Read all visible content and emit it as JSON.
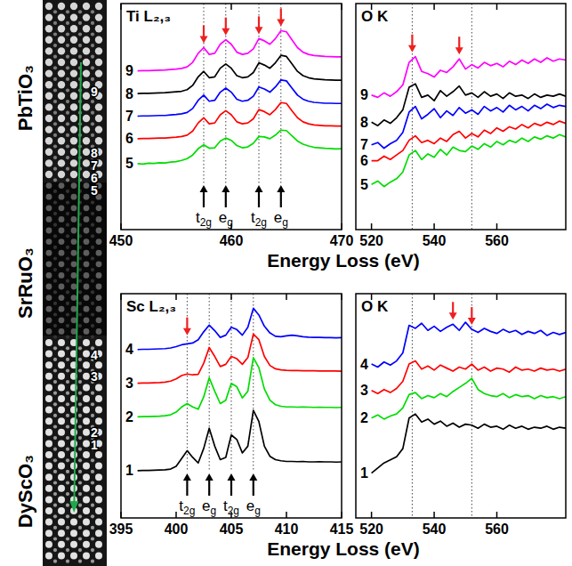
{
  "image": {
    "layers": [
      "PbTiO₃",
      "SrRuO₃",
      "DyScO₃"
    ],
    "points": [
      "9",
      "8",
      "7",
      "6",
      "5",
      "4",
      "3",
      "2",
      "1"
    ]
  },
  "chart_data": [
    {
      "type": "line",
      "title": "Ti L₂,₃",
      "x_label": "Energy Loss (eV)",
      "x": [
        451.5,
        452,
        452.5,
        453,
        453.5,
        454,
        454.5,
        455,
        455.5,
        456,
        456.5,
        457,
        457.5,
        458,
        458.5,
        459,
        459.5,
        460,
        460.5,
        461,
        461.5,
        462,
        462.5,
        463,
        463.5,
        464,
        464.5,
        465,
        465.5,
        466,
        466.5,
        467,
        467.5,
        468,
        468.5,
        469,
        469.5,
        470
      ],
      "series": [
        {
          "name": "9",
          "color": "#ff00ff",
          "values": [
            7.02,
            7.03,
            7.03,
            7.04,
            7.05,
            7.06,
            7.08,
            7.1,
            7.13,
            7.2,
            7.4,
            7.8,
            8.05,
            7.75,
            7.8,
            8.2,
            8.4,
            8.2,
            7.85,
            7.75,
            7.8,
            8.0,
            8.45,
            8.35,
            8.2,
            8.45,
            8.8,
            8.75,
            8.4,
            8.05,
            7.85,
            7.75,
            7.7,
            7.68,
            7.66,
            7.65,
            7.64,
            7.64
          ]
        },
        {
          "name": "8",
          "color": "#000000",
          "values": [
            6.02,
            6.03,
            6.03,
            6.04,
            6.05,
            6.06,
            6.08,
            6.1,
            6.12,
            6.19,
            6.38,
            6.76,
            7.0,
            6.72,
            6.76,
            7.14,
            7.33,
            7.14,
            6.81,
            6.72,
            6.76,
            6.95,
            7.38,
            7.28,
            7.14,
            7.38,
            7.71,
            7.66,
            7.33,
            7.0,
            6.81,
            6.72,
            6.67,
            6.65,
            6.63,
            6.62,
            6.61,
            6.61
          ]
        },
        {
          "name": "7",
          "color": "#0000ff",
          "values": [
            5.02,
            5.03,
            5.03,
            5.04,
            5.05,
            5.05,
            5.07,
            5.09,
            5.12,
            5.18,
            5.36,
            5.72,
            5.95,
            5.68,
            5.72,
            6.08,
            6.26,
            6.08,
            5.77,
            5.68,
            5.72,
            5.9,
            6.31,
            6.22,
            6.08,
            6.31,
            6.62,
            6.58,
            6.26,
            5.95,
            5.77,
            5.68,
            5.63,
            5.61,
            5.59,
            5.59,
            5.58,
            5.58
          ]
        },
        {
          "name": "6",
          "color": "#ff0000",
          "values": [
            4.02,
            4.03,
            4.03,
            4.04,
            4.05,
            4.05,
            4.07,
            4.09,
            4.12,
            4.18,
            4.36,
            4.72,
            4.95,
            4.68,
            4.72,
            5.08,
            5.26,
            5.08,
            4.77,
            4.68,
            4.72,
            4.9,
            5.31,
            5.22,
            5.08,
            5.31,
            5.62,
            5.58,
            5.26,
            4.95,
            4.77,
            4.68,
            4.63,
            4.61,
            4.59,
            4.59,
            4.58,
            4.58
          ]
        },
        {
          "name": "5",
          "color": "#00dd00",
          "values": [
            2.92,
            2.9,
            2.94,
            2.93,
            2.96,
            2.95,
            2.99,
            3.01,
            3.06,
            3.14,
            3.3,
            3.58,
            3.75,
            3.6,
            3.62,
            3.92,
            4.05,
            3.95,
            3.72,
            3.62,
            3.66,
            3.82,
            4.12,
            4.1,
            4.02,
            4.18,
            4.4,
            4.38,
            4.15,
            3.92,
            3.78,
            3.7,
            3.64,
            3.62,
            3.6,
            3.59,
            3.57,
            3.58
          ]
        }
      ],
      "xlim": [
        450,
        470
      ],
      "xticks": [
        450,
        460,
        470
      ],
      "ylim": [
        0,
        10
      ],
      "tick_labels": "x",
      "reference_lines": [
        457.5,
        459.5,
        462.5,
        464.5
      ],
      "red_arrows": [
        457.5,
        459.5,
        462.5,
        464.5
      ],
      "peak_labels": {
        "x": [
          457.5,
          459.5,
          462.5,
          464.5
        ],
        "labels": [
          "t2g",
          "eg",
          "t2g",
          "eg"
        ]
      }
    },
    {
      "type": "line",
      "title": "O K",
      "x": [
        520,
        522,
        524,
        526,
        528,
        530,
        532,
        534,
        536,
        538,
        540,
        542,
        544,
        546,
        548,
        550,
        552,
        554,
        556,
        558,
        560,
        562,
        564,
        566,
        568,
        570,
        572,
        574,
        576,
        578,
        580,
        582
      ],
      "series": [
        {
          "name": "9",
          "color": "#ff00ff",
          "values": [
            5.95,
            5.85,
            6.05,
            5.9,
            6.1,
            6.4,
            7.4,
            7.65,
            7.0,
            6.9,
            6.75,
            7.05,
            6.95,
            7.2,
            7.55,
            7.1,
            7.3,
            7.15,
            7.4,
            7.25,
            7.35,
            7.2,
            7.45,
            7.3,
            7.5,
            7.35,
            7.55,
            7.4,
            7.6,
            7.45,
            7.55,
            7.5
          ]
        },
        {
          "name": "8",
          "color": "#000000",
          "values": [
            4.75,
            4.6,
            4.85,
            4.7,
            4.95,
            5.3,
            6.3,
            6.45,
            5.85,
            5.95,
            5.7,
            6.15,
            5.9,
            6.1,
            6.35,
            5.95,
            6.05,
            5.85,
            6.1,
            5.9,
            6.0,
            5.8,
            6.05,
            5.9,
            5.95,
            5.8,
            6.0,
            5.85,
            5.95,
            5.9,
            6.0,
            5.9
          ]
        },
        {
          "name": "7",
          "color": "#0000ff",
          "values": [
            3.75,
            3.85,
            3.6,
            3.8,
            3.95,
            4.3,
            5.2,
            5.45,
            4.9,
            5.1,
            5.35,
            4.95,
            5.25,
            5.05,
            5.4,
            5.15,
            5.3,
            5.1,
            5.45,
            5.25,
            5.4,
            5.2,
            5.5,
            5.3,
            5.45,
            5.25,
            5.5,
            5.35,
            5.55,
            5.4,
            5.5,
            5.45
          ]
        },
        {
          "name": "6",
          "color": "#ff0000",
          "values": [
            3.05,
            3.05,
            3.25,
            3.1,
            3.3,
            3.5,
            3.95,
            4.15,
            3.85,
            3.95,
            3.8,
            4.05,
            3.9,
            4.2,
            4.35,
            4.05,
            4.25,
            4.1,
            4.4,
            4.25,
            4.5,
            4.35,
            4.55,
            4.45,
            4.65,
            4.5,
            4.7,
            4.6,
            4.75,
            4.65,
            4.8,
            4.7
          ]
        },
        {
          "name": "5",
          "color": "#00dd00",
          "values": [
            2.0,
            2.15,
            1.9,
            2.1,
            2.25,
            2.55,
            3.3,
            3.5,
            3.1,
            3.35,
            3.2,
            3.55,
            3.3,
            3.65,
            3.5,
            3.45,
            3.7,
            3.55,
            3.8,
            3.65,
            3.9,
            3.75,
            3.95,
            3.85,
            4.05,
            3.9,
            4.1,
            4.0,
            4.15,
            4.05,
            4.2,
            4.1
          ]
        }
      ],
      "xlim": [
        515,
        582
      ],
      "xticks": [
        520,
        540,
        560
      ],
      "ylim": [
        0,
        10
      ],
      "tick_labels": "x",
      "reference_lines": [
        533,
        552
      ],
      "red_arrows": [
        533,
        548
      ]
    },
    {
      "type": "line",
      "title": "Sc L₂,₃",
      "x_label": "Energy Loss (eV)",
      "x": [
        396.5,
        397,
        397.5,
        398,
        398.5,
        399,
        399.5,
        400,
        400.5,
        401,
        401.5,
        402,
        402.5,
        403,
        403.5,
        404,
        404.5,
        405,
        405.5,
        406,
        406.5,
        407,
        407.5,
        408,
        408.5,
        409,
        409.5,
        410,
        410.5,
        411,
        411.5,
        412,
        412.5,
        413,
        413.5,
        414,
        414.5,
        415
      ],
      "series": [
        {
          "name": "4",
          "color": "#0000ff",
          "values": [
            7.51,
            7.52,
            7.52,
            7.53,
            7.54,
            7.55,
            7.58,
            7.64,
            7.72,
            7.76,
            7.8,
            7.95,
            8.3,
            8.6,
            8.35,
            8.05,
            8.15,
            8.5,
            8.4,
            8.15,
            8.5,
            9.35,
            9.05,
            8.55,
            8.25,
            8.1,
            8.08,
            8.12,
            8.15,
            8.12,
            8.08,
            8.06,
            8.05,
            8.05,
            8.04,
            8.04,
            8.03,
            8.04
          ]
        },
        {
          "name": "3",
          "color": "#ff0000",
          "values": [
            6.01,
            6.02,
            6.02,
            6.03,
            6.04,
            6.06,
            6.1,
            6.2,
            6.35,
            6.42,
            6.38,
            6.4,
            6.9,
            7.6,
            7.2,
            6.75,
            6.85,
            7.2,
            7.1,
            6.85,
            7.15,
            8.2,
            7.95,
            7.2,
            6.8,
            6.65,
            6.6,
            6.58,
            6.57,
            6.57,
            6.56,
            6.56,
            6.56,
            6.55,
            6.55,
            6.55,
            6.55,
            6.54
          ]
        },
        {
          "name": "2",
          "color": "#00dd00",
          "values": [
            4.51,
            4.52,
            4.52,
            4.53,
            4.54,
            4.56,
            4.6,
            4.72,
            4.95,
            5.1,
            4.95,
            4.85,
            5.4,
            6.25,
            5.65,
            5.1,
            5.25,
            6.0,
            5.85,
            5.35,
            5.65,
            7.15,
            6.7,
            5.75,
            5.25,
            5.05,
            4.98,
            4.95,
            4.95,
            4.94,
            4.95,
            4.94,
            4.93,
            4.94,
            4.93,
            4.93,
            4.92,
            4.93
          ]
        },
        {
          "name": "1",
          "color": "#000000",
          "values": [
            2.11,
            2.12,
            2.12,
            2.13,
            2.14,
            2.15,
            2.18,
            2.3,
            2.65,
            3.0,
            2.7,
            2.45,
            3.1,
            4.0,
            3.2,
            2.6,
            2.7,
            3.7,
            3.5,
            2.9,
            3.2,
            4.8,
            4.3,
            3.2,
            2.75,
            2.6,
            2.55,
            2.52,
            2.52,
            2.51,
            2.52,
            2.5,
            2.5,
            2.51,
            2.5,
            2.5,
            2.49,
            2.5
          ]
        }
      ],
      "xlim": [
        395,
        415
      ],
      "xticks": [
        395,
        400,
        405,
        410,
        415
      ],
      "ylim": [
        0,
        10
      ],
      "tick_labels": "x",
      "reference_lines": [
        401,
        403,
        405,
        407
      ],
      "red_arrows": [
        401
      ],
      "peak_labels": {
        "x": [
          401,
          403,
          405,
          407
        ],
        "labels": [
          "t2g",
          "eg",
          "t2g",
          "eg"
        ]
      }
    },
    {
      "type": "line",
      "title": "O K",
      "x": [
        520,
        522,
        524,
        526,
        528,
        530,
        532,
        534,
        536,
        538,
        540,
        542,
        544,
        546,
        548,
        550,
        552,
        554,
        556,
        558,
        560,
        562,
        564,
        566,
        568,
        570,
        572,
        574,
        576,
        578,
        580,
        582
      ],
      "series": [
        {
          "name": "4",
          "color": "#0000ff",
          "values": [
            7.55,
            7.4,
            7.65,
            7.5,
            7.7,
            8.1,
            9.45,
            9.3,
            9.55,
            9.2,
            9.4,
            9.15,
            9.35,
            9.5,
            9.2,
            9.6,
            9.25,
            9.1,
            9.3,
            9.15,
            9.05,
            9.25,
            9.1,
            9.2,
            9.0,
            9.15,
            9.05,
            9.2,
            8.95,
            9.1,
            9.0,
            9.1
          ]
        },
        {
          "name": "3",
          "color": "#ff0000",
          "values": [
            6.25,
            6.1,
            6.3,
            6.15,
            6.35,
            6.7,
            7.55,
            7.7,
            7.3,
            7.45,
            7.25,
            7.5,
            7.35,
            7.2,
            7.4,
            7.3,
            7.55,
            7.25,
            7.4,
            7.2,
            7.35,
            7.3,
            7.15,
            7.4,
            7.25,
            7.3,
            7.2,
            7.35,
            7.25,
            7.3,
            7.2,
            7.3
          ]
        },
        {
          "name": "2",
          "color": "#00dd00",
          "values": [
            4.9,
            5.05,
            4.85,
            5.0,
            5.1,
            5.4,
            6.05,
            6.15,
            5.85,
            6.0,
            5.9,
            6.1,
            5.95,
            6.2,
            6.4,
            6.6,
            6.85,
            6.3,
            6.1,
            6.0,
            5.95,
            6.1,
            5.9,
            6.05,
            5.95,
            6.0,
            5.85,
            6.0,
            5.9,
            5.95,
            5.85,
            5.95
          ]
        },
        {
          "name": "1",
          "color": "#000000",
          "values": [
            2.2,
            2.45,
            2.7,
            2.85,
            3.0,
            3.4,
            4.9,
            5.1,
            4.7,
            4.85,
            4.6,
            4.75,
            4.5,
            4.65,
            4.45,
            4.6,
            4.55,
            4.4,
            4.6,
            4.45,
            4.5,
            4.35,
            4.55,
            4.4,
            4.5,
            4.35,
            4.45,
            4.4,
            4.5,
            4.35,
            4.45,
            4.4
          ]
        }
      ],
      "xlim": [
        515,
        582
      ],
      "xticks": [
        520,
        540,
        560
      ],
      "ylim": [
        0,
        11
      ],
      "tick_labels": "x",
      "reference_lines": [
        533,
        552
      ],
      "red_arrows": [
        546,
        552
      ]
    }
  ]
}
